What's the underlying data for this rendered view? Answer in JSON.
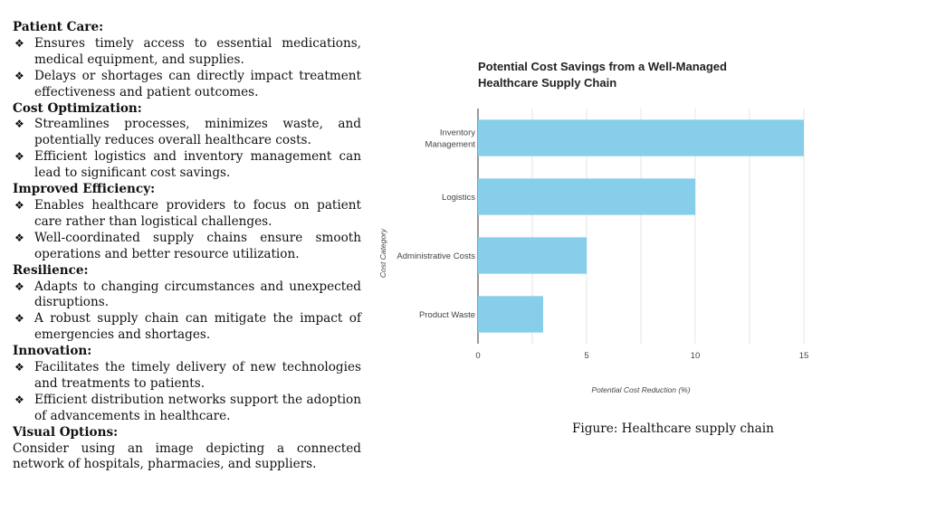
{
  "sections": [
    {
      "heading": "Patient Care:",
      "bullets": [
        "Ensures timely access to essential medications, medical equipment, and supplies.",
        "Delays or shortages can directly impact treatment effectiveness and patient outcomes."
      ]
    },
    {
      "heading": "Cost Optimization:",
      "bullets": [
        "Streamlines processes, minimizes waste, and potentially reduces overall healthcare costs.",
        "Efficient logistics and inventory management can lead to significant cost savings."
      ]
    },
    {
      "heading": "Improved Efficiency:",
      "bullets": [
        "Enables healthcare providers to focus on patient care rather than logistical challenges.",
        "Well-coordinated supply chains ensure smooth operations and better resource utilization."
      ]
    },
    {
      "heading": "Resilience:",
      "bullets": [
        "Adapts to changing circumstances and unexpected disruptions.",
        "A robust supply chain can mitigate the impact of emergencies and shortages."
      ]
    },
    {
      "heading": "Innovation:",
      "bullets": [
        "Facilitates the timely delivery of new technologies and treatments to patients.",
        "Efficient distribution networks support the adoption of advancements in healthcare."
      ]
    }
  ],
  "visual_options": {
    "heading": "Visual Options:",
    "text": "Consider using an image depicting a connected network of hospitals, pharmacies, and suppliers."
  },
  "bullet_glyph": "❖",
  "caption": "Figure: Healthcare supply chain",
  "chart_data": {
    "type": "bar",
    "orientation": "horizontal",
    "title": [
      "Potential Cost Savings from a Well-Managed",
      "Healthcare Supply Chain"
    ],
    "categories": [
      {
        "lines": [
          "Inventory",
          "Management"
        ],
        "value": 15
      },
      {
        "lines": [
          "Logistics"
        ],
        "value": 10
      },
      {
        "lines": [
          "Administrative Costs"
        ],
        "value": 5
      },
      {
        "lines": [
          "Product Waste"
        ],
        "value": 3
      }
    ],
    "xlabel": "Potential Cost Reduction (%)",
    "ylabel": "Cost Category",
    "xlim": [
      0,
      15
    ],
    "xticks": [
      0,
      5,
      10,
      15
    ],
    "grid": true,
    "bar_color": "#87ceeb"
  }
}
